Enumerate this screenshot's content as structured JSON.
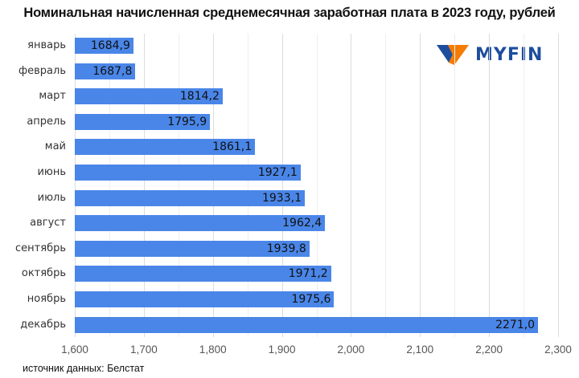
{
  "title": "Номинальная начисленная среднемесячная заработная плата в 2023 году, рублей",
  "logo": {
    "text": "MYFIN",
    "icon": "myfin-v-logo-icon",
    "colors": {
      "blue": "#1d4e9e",
      "orange": "#f57c00"
    }
  },
  "source": "источник данных: Белстат",
  "colors": {
    "bar": "#4a86e8"
  },
  "chart_data": {
    "type": "bar",
    "orientation": "horizontal",
    "title": "Номинальная начисленная среднемесячная заработная плата в 2023 году, рублей",
    "xlabel": "",
    "ylabel": "",
    "xlim": [
      1600,
      2300
    ],
    "x_ticks": [
      "1,600",
      "1,700",
      "1,800",
      "1,900",
      "2,000",
      "2,100",
      "2,200",
      "2,300"
    ],
    "grid": true,
    "legend": null,
    "categories": [
      "январь",
      "февраль",
      "март",
      "апрель",
      "май",
      "июнь",
      "июль",
      "август",
      "сентябрь",
      "октябрь",
      "ноябрь",
      "декабрь"
    ],
    "values": [
      1684.9,
      1687.8,
      1814.2,
      1795.9,
      1861.1,
      1927.1,
      1933.1,
      1962.4,
      1939.8,
      1971.2,
      1975.6,
      2271.0
    ],
    "labels": [
      "1684,9",
      "1687,8",
      "1814,2",
      "1795,9",
      "1861,1",
      "1927,1",
      "1933,1",
      "1962,4",
      "1939,8",
      "1971,2",
      "1975,6",
      "2271,0"
    ],
    "annotations": [
      "источник данных: Белстат"
    ]
  }
}
